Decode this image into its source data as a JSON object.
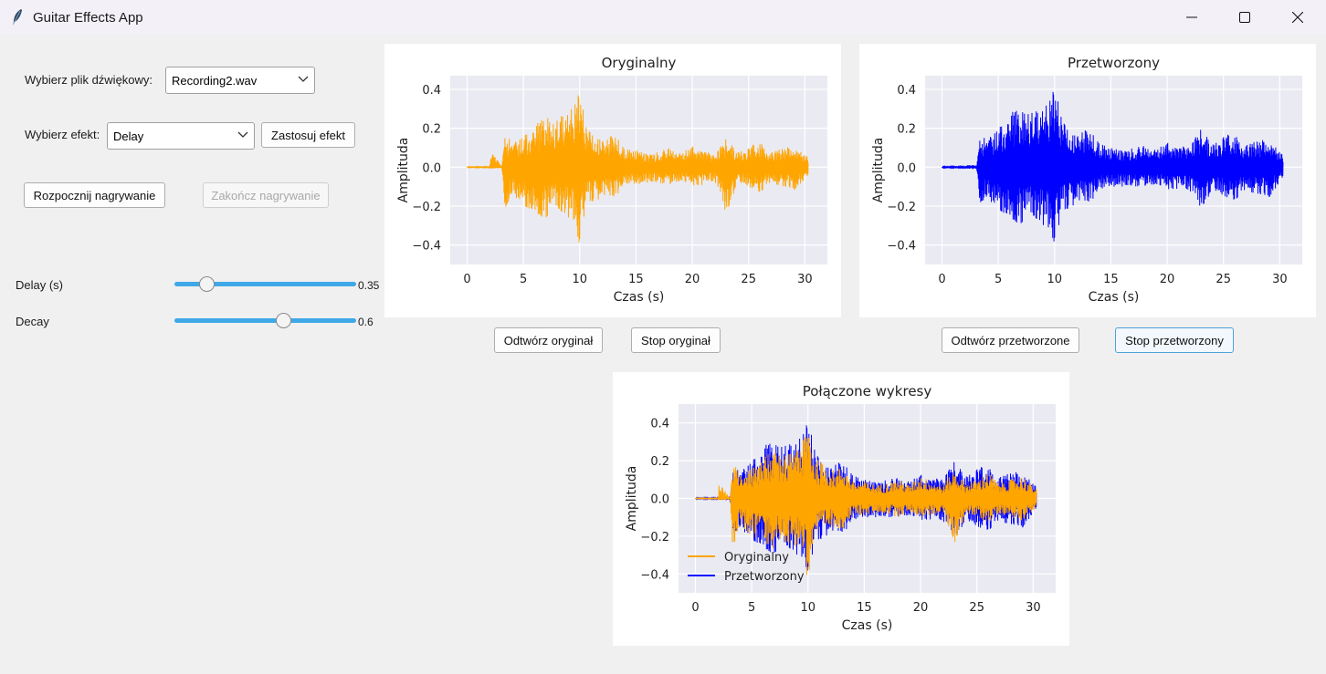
{
  "window": {
    "title": "Guitar Effects App",
    "icon": "feather-icon",
    "controls": [
      "minimize-icon",
      "maximize-icon",
      "close-icon"
    ]
  },
  "controls": {
    "file_label": "Wybierz plik dźwiękowy:",
    "file_value": "Recording2.wav",
    "effect_label": "Wybierz efekt:",
    "effect_value": "Delay",
    "apply_button": "Zastosuj efekt",
    "record_start_button": "Rozpocznij nagrywanie",
    "record_stop_button": "Zakończ nagrywanie",
    "sliders": [
      {
        "label": "Delay (s)",
        "value": 0.35,
        "display": "0.35",
        "min": 0,
        "max": 2
      },
      {
        "label": "Decay",
        "value": 0.6,
        "display": "0.6",
        "min": 0,
        "max": 1
      }
    ],
    "play_original": "Odtwórz oryginał",
    "stop_original": "Stop oryginał",
    "play_processed": "Odtwórz przetworzone",
    "stop_processed": "Stop przetworzony"
  },
  "colors": {
    "original": "#ffa500",
    "processed": "#0000ff",
    "slider_accent": "#3fa8e6",
    "plot_background": "#eaeaf2"
  },
  "chart_data": [
    {
      "type": "line",
      "title": "Oryginalny",
      "xlabel": "Czas (s)",
      "ylabel": "Amplituda",
      "xlim": [
        -1.5,
        32
      ],
      "ylim": [
        -0.5,
        0.47
      ],
      "xticks": [
        0,
        5,
        10,
        15,
        20,
        25,
        30
      ],
      "yticks": [
        -0.4,
        -0.2,
        0.0,
        0.2,
        0.4
      ],
      "ytick_labels": [
        "−0.4",
        "−0.2",
        "0.0",
        "0.2",
        "0.4"
      ],
      "series": [
        {
          "color": "#ffa500",
          "envelope_time": [
            0,
            2.0,
            2.1,
            3.1,
            3.3,
            4.0,
            5.0,
            6.5,
            7.0,
            7.5,
            8.5,
            9.5,
            10.0,
            10.5,
            11.5,
            12.5,
            13.0,
            14.0,
            15.0,
            16.0,
            17.0,
            18.0,
            19.0,
            20.0,
            21.0,
            22.0,
            23.0,
            24.0,
            25.0,
            26.0,
            27.0,
            28.0,
            29.0,
            30.3
          ],
          "envelope_pos": [
            0.002,
            0.002,
            0.08,
            0.005,
            0.2,
            0.12,
            0.16,
            0.24,
            0.3,
            0.22,
            0.28,
            0.32,
            0.44,
            0.22,
            0.18,
            0.14,
            0.18,
            0.09,
            0.09,
            0.07,
            0.08,
            0.1,
            0.07,
            0.12,
            0.09,
            0.07,
            0.15,
            0.08,
            0.1,
            0.14,
            0.08,
            0.1,
            0.12,
            0.05
          ],
          "envelope_neg": [
            -0.002,
            -0.002,
            -0.01,
            -0.005,
            -0.27,
            -0.14,
            -0.2,
            -0.25,
            -0.27,
            -0.22,
            -0.25,
            -0.28,
            -0.45,
            -0.2,
            -0.17,
            -0.15,
            -0.17,
            -0.09,
            -0.09,
            -0.08,
            -0.08,
            -0.1,
            -0.07,
            -0.1,
            -0.09,
            -0.07,
            -0.25,
            -0.08,
            -0.1,
            -0.13,
            -0.08,
            -0.1,
            -0.12,
            -0.05
          ]
        }
      ]
    },
    {
      "type": "line",
      "title": "Przetworzony",
      "xlabel": "Czas (s)",
      "ylabel": "Amplituda",
      "xlim": [
        -1.5,
        32
      ],
      "ylim": [
        -0.5,
        0.47
      ],
      "xticks": [
        0,
        5,
        10,
        15,
        20,
        25,
        30
      ],
      "yticks": [
        -0.4,
        -0.2,
        0.0,
        0.2,
        0.4
      ],
      "ytick_labels": [
        "−0.4",
        "−0.2",
        "0.0",
        "0.2",
        "0.4"
      ],
      "series": [
        {
          "color": "#0000ff",
          "envelope_time": [
            0,
            2.0,
            2.1,
            3.1,
            3.3,
            4.0,
            5.0,
            6.5,
            7.0,
            7.5,
            8.5,
            9.5,
            10.0,
            10.5,
            11.5,
            12.5,
            13.0,
            14.0,
            15.0,
            16.0,
            17.0,
            18.0,
            19.0,
            20.0,
            21.0,
            22.0,
            23.0,
            24.0,
            25.0,
            26.0,
            27.0,
            28.0,
            29.0,
            30.3
          ],
          "envelope_pos": [
            0.003,
            0.003,
            0.01,
            0.01,
            0.18,
            0.14,
            0.2,
            0.3,
            0.32,
            0.28,
            0.3,
            0.34,
            0.46,
            0.28,
            0.2,
            0.18,
            0.2,
            0.12,
            0.1,
            0.09,
            0.1,
            0.11,
            0.09,
            0.14,
            0.11,
            0.12,
            0.2,
            0.12,
            0.16,
            0.18,
            0.12,
            0.14,
            0.16,
            0.06
          ],
          "envelope_neg": [
            -0.003,
            -0.003,
            -0.01,
            -0.01,
            -0.23,
            -0.16,
            -0.22,
            -0.28,
            -0.3,
            -0.26,
            -0.29,
            -0.32,
            -0.44,
            -0.26,
            -0.2,
            -0.18,
            -0.2,
            -0.12,
            -0.1,
            -0.1,
            -0.1,
            -0.11,
            -0.09,
            -0.12,
            -0.11,
            -0.12,
            -0.22,
            -0.12,
            -0.15,
            -0.17,
            -0.12,
            -0.14,
            -0.16,
            -0.06
          ]
        }
      ]
    },
    {
      "type": "line",
      "title": "Połączone wykresy",
      "xlabel": "Czas (s)",
      "ylabel": "Amplituda",
      "xlim": [
        -1.5,
        32
      ],
      "ylim": [
        -0.5,
        0.5
      ],
      "xticks": [
        0,
        5,
        10,
        15,
        20,
        25,
        30
      ],
      "yticks": [
        -0.4,
        -0.2,
        0.0,
        0.2,
        0.4
      ],
      "ytick_labels": [
        "−0.4",
        "−0.2",
        "0.0",
        "0.2",
        "0.4"
      ],
      "legend": {
        "location": "lower-left",
        "entries": [
          "Oryginalny",
          "Przetworzony"
        ]
      },
      "series": [
        {
          "name": "Przetworzony",
          "color": "#0000ff",
          "ref": 1
        },
        {
          "name": "Oryginalny",
          "color": "#ffa500",
          "ref": 0
        }
      ]
    }
  ]
}
